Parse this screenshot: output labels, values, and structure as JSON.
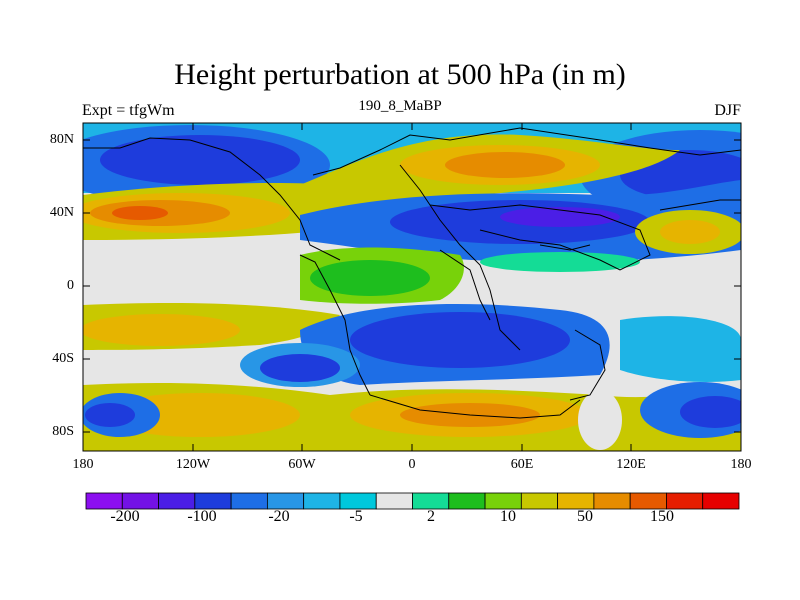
{
  "title": "Height perturbation at 500 hPa (in m)",
  "left_label": "Expt = tfgWm",
  "center_label": "190_8_MaBP",
  "right_label": "DJF",
  "y_ticks": [
    "80N",
    "40N",
    "0",
    "40S",
    "80S"
  ],
  "x_ticks": [
    "180",
    "120W",
    "60W",
    "0",
    "60E",
    "120E",
    "180"
  ],
  "colorbar": {
    "colors": [
      "#8c0ff0",
      "#7312e6",
      "#4b1ee6",
      "#1e3cdc",
      "#1e6ee6",
      "#2896e6",
      "#1eb4e6",
      "#00c8dc",
      "#e6e6e6",
      "#14dc96",
      "#1ebe1e",
      "#78d20a",
      "#c8c800",
      "#e6b400",
      "#e68c00",
      "#e65a00",
      "#e61e00",
      "#e60000"
    ],
    "labels": [
      "-200",
      "-100",
      "-20",
      "-5",
      "2",
      "10",
      "50",
      "150"
    ]
  },
  "chart_data": {
    "type": "heatmap",
    "title": "Height perturbation at 500 hPa (in m)",
    "subtitle": "190_8_MaBP",
    "variable": "Height perturbation at 500 hPa",
    "units": "m",
    "season": "DJF",
    "experiment": "tfgWm",
    "x_range": [
      -180,
      180
    ],
    "y_range": [
      -90,
      90
    ],
    "x_ticks": [
      -180,
      -120,
      -60,
      0,
      60,
      120,
      180
    ],
    "y_ticks": [
      80,
      40,
      0,
      -40,
      -80
    ],
    "colorbar_labels": [
      -200,
      -100,
      -20,
      -5,
      2,
      10,
      50,
      150
    ]
  }
}
